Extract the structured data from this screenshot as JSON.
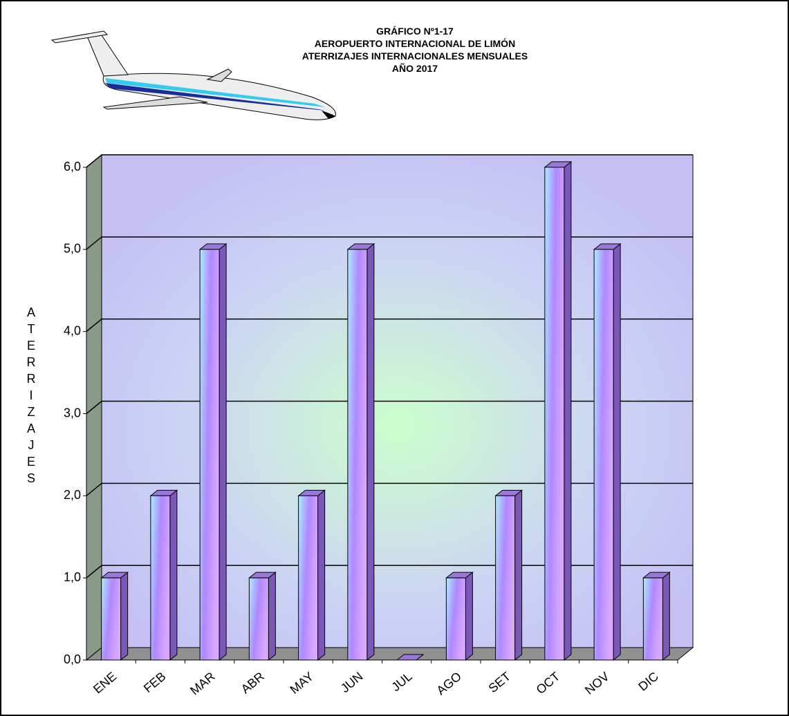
{
  "chart_data": {
    "type": "bar3d",
    "title": [
      "GRÁFICO Nº1-17",
      "AEROPUERTO INTERNACIONAL DE LIMÓN",
      "ATERRIZAJES INTERNACIONALES MENSUALES",
      "AÑO 2017"
    ],
    "y_label": "ATERRIZAJES",
    "categories": [
      "ENE",
      "FEB",
      "MAR",
      "ABR",
      "MAY",
      "JUN",
      "JUL",
      "AGO",
      "SET",
      "OCT",
      "NOV",
      "DIC"
    ],
    "values": [
      1,
      2,
      5,
      1,
      2,
      5,
      0,
      1,
      2,
      6,
      5,
      1
    ],
    "ylim": [
      0,
      6
    ],
    "yticks": [
      {
        "value": 0,
        "label": "0,0"
      },
      {
        "value": 1,
        "label": "1,0"
      },
      {
        "value": 2,
        "label": "2,0"
      },
      {
        "value": 3,
        "label": "3,0"
      },
      {
        "value": 4,
        "label": "4,0"
      },
      {
        "value": 5,
        "label": "5,0"
      },
      {
        "value": 6,
        "label": "6,0"
      }
    ],
    "grid": true
  }
}
